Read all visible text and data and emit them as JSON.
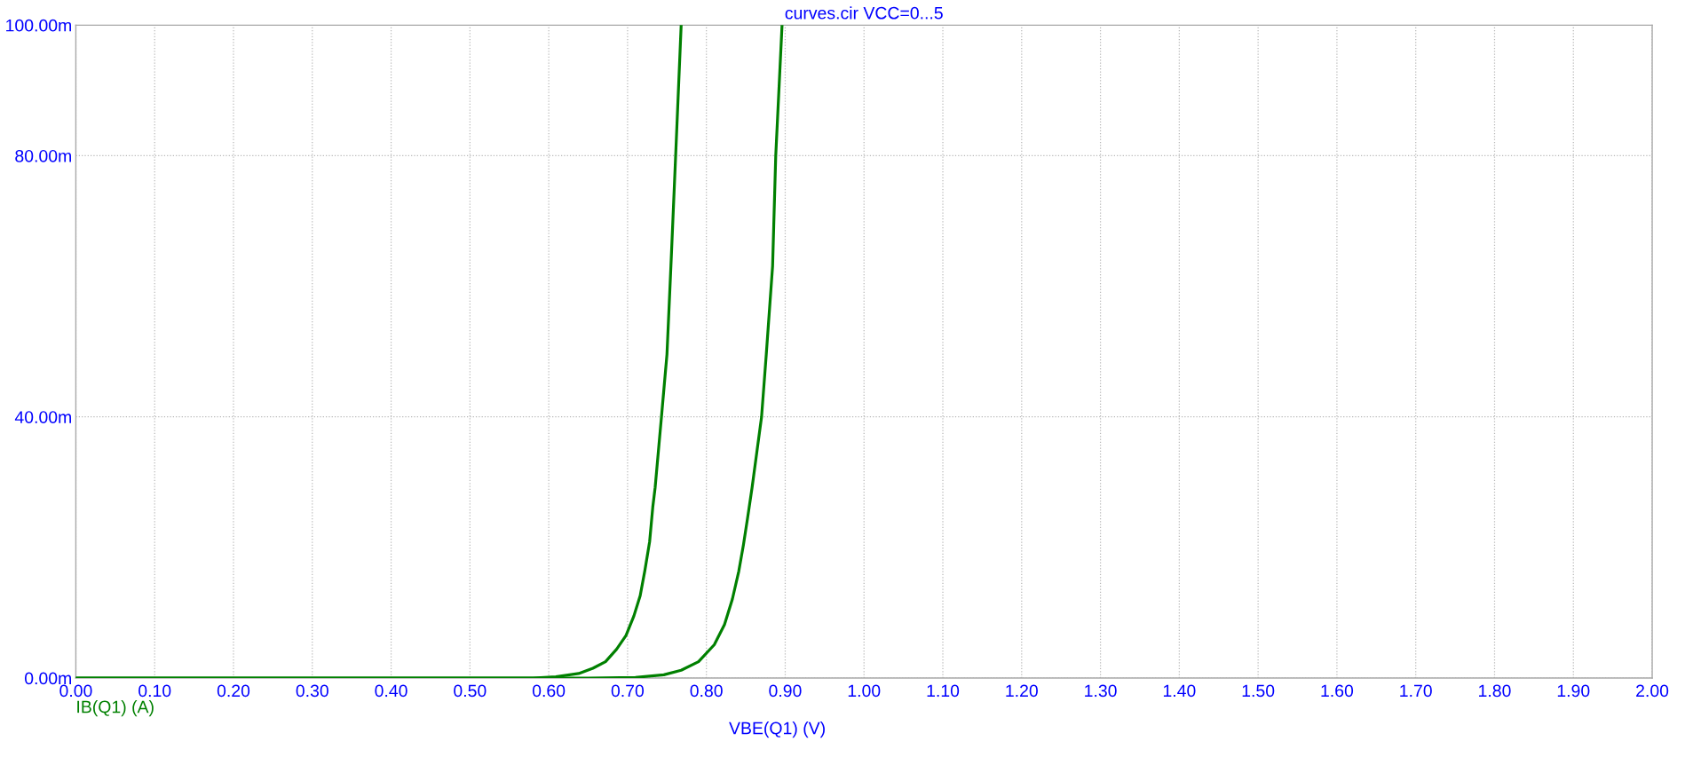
{
  "chart_data": {
    "type": "line",
    "title": "curves.cir VCC=0...5",
    "xlabel": "VBE(Q1) (V)",
    "series": [
      {
        "name": "IB(Q1) (A)",
        "color": "#008000",
        "x": [
          0,
          0.55,
          0.58,
          0.609,
          0.638,
          0.656,
          0.672,
          0.686,
          0.698,
          0.708,
          0.716,
          0.722,
          0.728,
          0.732,
          0.735,
          0.743,
          0.75,
          0.755,
          0.761,
          0.768
        ],
        "values": [
          0,
          0,
          0,
          0.2,
          0.7,
          1.5,
          2.5,
          4.4,
          6.5,
          9.5,
          12.6,
          16.5,
          20.9,
          26.2,
          29.2,
          40,
          49.6,
          63.1,
          80,
          100
        ]
      },
      {
        "color": "#008000",
        "x": [
          0,
          0.65,
          0.71,
          0.746,
          0.768,
          0.79,
          0.81,
          0.823,
          0.833,
          0.841,
          0.847,
          0.852,
          0.858,
          0.87,
          0.876,
          0.884,
          0.888,
          0.896
        ],
        "values": [
          0,
          0,
          0.1,
          0.5,
          1.2,
          2.5,
          5.1,
          8.2,
          12.1,
          16.3,
          20.4,
          24.3,
          29.2,
          40,
          49.6,
          63.1,
          80,
          100
        ]
      }
    ],
    "xlim": [
      0,
      2
    ],
    "xticks": [
      {
        "value": 0,
        "label": "0.00"
      },
      {
        "value": 0.1,
        "label": "0.10"
      },
      {
        "value": 0.2,
        "label": "0.20"
      },
      {
        "value": 0.3,
        "label": "0.30"
      },
      {
        "value": 0.4,
        "label": "0.40"
      },
      {
        "value": 0.5,
        "label": "0.50"
      },
      {
        "value": 0.6,
        "label": "0.60"
      },
      {
        "value": 0.7,
        "label": "0.70"
      },
      {
        "value": 0.8,
        "label": "0.80"
      },
      {
        "value": 0.9,
        "label": "0.90"
      },
      {
        "value": 1,
        "label": "1.00"
      },
      {
        "value": 1.1,
        "label": "1.10"
      },
      {
        "value": 1.2,
        "label": "1.20"
      },
      {
        "value": 1.3,
        "label": "1.30"
      },
      {
        "value": 1.4,
        "label": "1.40"
      },
      {
        "value": 1.5,
        "label": "1.50"
      },
      {
        "value": 1.6,
        "label": "1.60"
      },
      {
        "value": 1.7,
        "label": "1.70"
      },
      {
        "value": 1.8,
        "label": "1.80"
      },
      {
        "value": 1.9,
        "label": "1.90"
      },
      {
        "value": 2,
        "label": "2.00"
      }
    ],
    "ylim": [
      0,
      100
    ],
    "yticks": [
      {
        "value": 0,
        "label": "0.00m"
      },
      {
        "value": 40,
        "label": "40.00m"
      },
      {
        "value": 80,
        "label": "80.00m"
      },
      {
        "value": 100,
        "label": "100.00m"
      }
    ],
    "grid": true,
    "legend": "bottom left",
    "line_style": "solid"
  }
}
